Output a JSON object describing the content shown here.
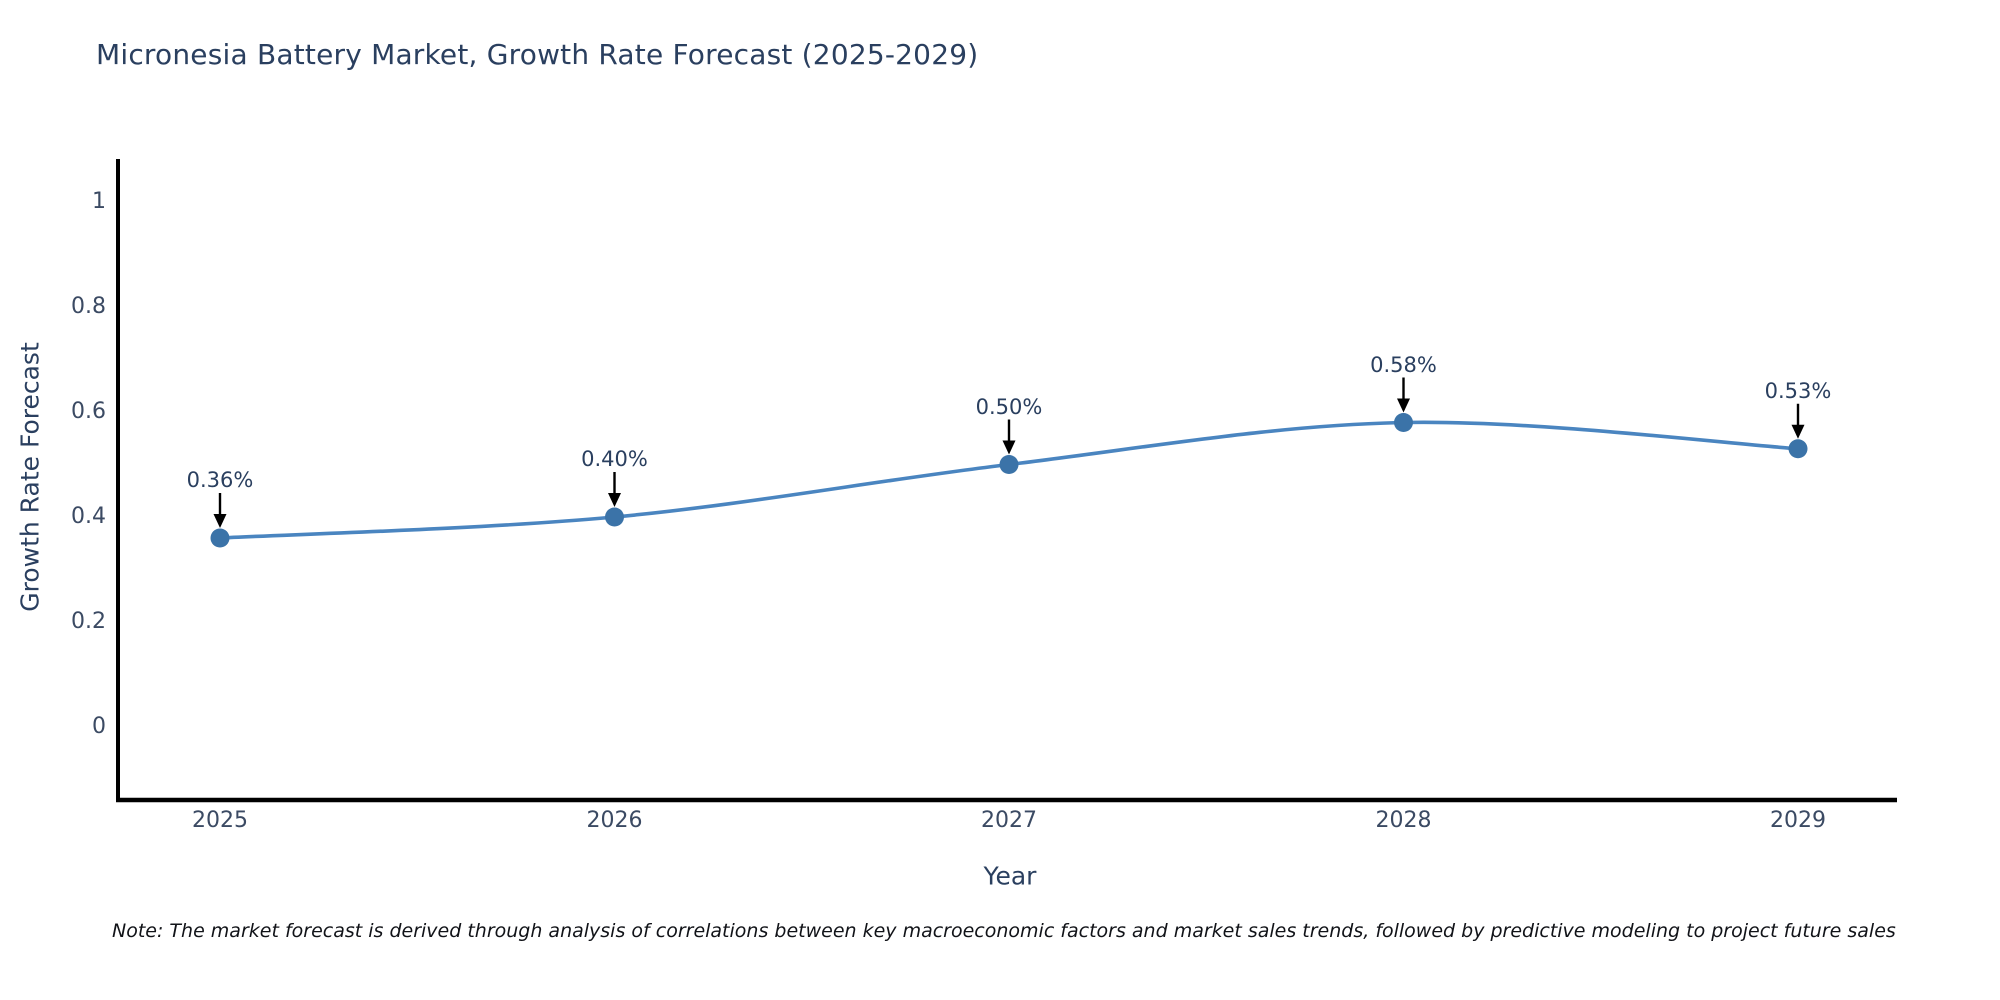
{
  "chart_data": {
    "type": "line",
    "title": "Micronesia Battery Market, Growth Rate Forecast (2025-2029)",
    "xlabel": "Year",
    "ylabel": "Growth Rate Forecast",
    "x": [
      2025,
      2026,
      2027,
      2028,
      2029
    ],
    "series": [
      {
        "name": "Growth Rate Forecast",
        "values": [
          0.36,
          0.4,
          0.5,
          0.58,
          0.53
        ]
      }
    ],
    "point_labels": [
      "0.36%",
      "0.40%",
      "0.50%",
      "0.58%",
      "0.53%"
    ],
    "x_tick_labels": [
      "2025",
      "2026",
      "2027",
      "2028",
      "2029"
    ],
    "y_tick_values": [
      0,
      0.2,
      0.4,
      0.6,
      0.8,
      1
    ],
    "y_tick_labels": [
      "0",
      "0.2",
      "0.4",
      "0.6",
      "0.8",
      "1"
    ],
    "ylim": [
      -0.139,
      1.082
    ],
    "grid": false,
    "legend_position": "none",
    "line_shape": "spline",
    "colors": {
      "line": "#4a85c0",
      "marker": "#3b73a8",
      "arrow": "#000000",
      "axis": "#000000",
      "heading_text": "#2a3f5f",
      "tick_text": "#3b4a63"
    }
  },
  "note": "Note: The market forecast is derived through analysis of correlations between key macroeconomic factors and market sales trends, followed by predictive modeling to project future sales"
}
